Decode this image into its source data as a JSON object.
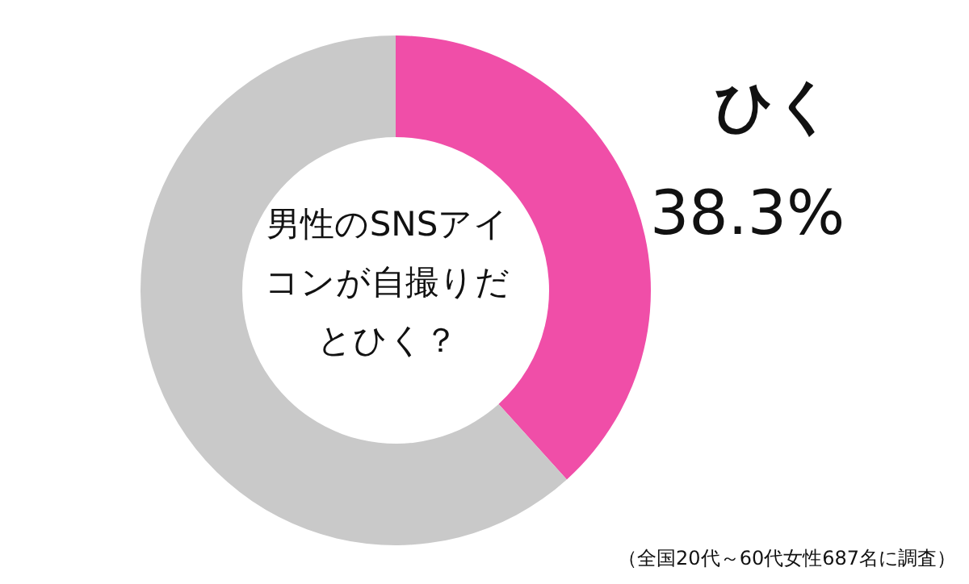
{
  "chart_data": {
    "type": "donut",
    "title": "男性のSNSアイコンが自撮りだとひく？",
    "categories": [
      "ひく",
      null
    ],
    "values": [
      38.3,
      61.7
    ],
    "colors": [
      "#f04ea8",
      "#c9c9c9"
    ],
    "value_labels": [
      "38.3%",
      null
    ],
    "annotations": [
      "（全国20代～60代女性687名に調査）"
    ]
  }
}
